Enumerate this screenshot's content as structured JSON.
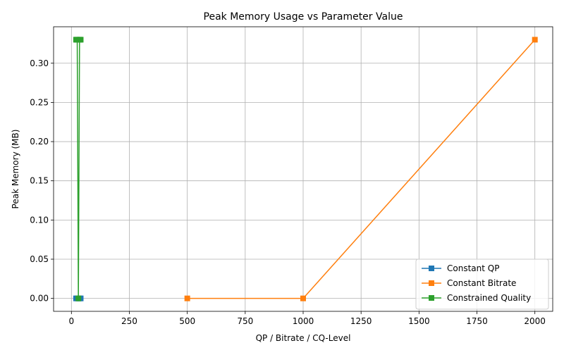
{
  "chart_data": {
    "type": "line",
    "title": "Peak Memory Usage vs Parameter Value",
    "xlabel": "QP / Bitrate / CQ-Level",
    "ylabel": "Peak Memory (MB)",
    "xlim": [
      -77,
      2077
    ],
    "ylim": [
      -0.0165,
      0.3465
    ],
    "xticks": [
      0,
      250,
      500,
      750,
      1000,
      1250,
      1500,
      1750,
      2000
    ],
    "xtick_labels": [
      "0",
      "250",
      "500",
      "750",
      "1000",
      "1250",
      "1500",
      "1750",
      "2000"
    ],
    "yticks": [
      0.0,
      0.05,
      0.1,
      0.15,
      0.2,
      0.25,
      0.3
    ],
    "ytick_labels": [
      "0.00",
      "0.05",
      "0.10",
      "0.15",
      "0.20",
      "0.25",
      "0.30"
    ],
    "grid": true,
    "legend_position": "bottom-right",
    "series": [
      {
        "name": "Constant QP",
        "color": "#1f77b4",
        "marker": "square",
        "x": [
          20,
          25,
          30,
          35,
          40
        ],
        "y": [
          0.0,
          0.0,
          0.0,
          0.0,
          0.0
        ]
      },
      {
        "name": "Constant Bitrate",
        "color": "#ff7f0e",
        "marker": "square",
        "x": [
          500,
          1000,
          2000
        ],
        "y": [
          0.0,
          0.0,
          0.33
        ]
      },
      {
        "name": "Constrained Quality",
        "color": "#2ca02c",
        "marker": "square",
        "x": [
          20,
          25,
          30,
          35,
          40
        ],
        "y": [
          0.33,
          0.33,
          0.0,
          0.33,
          0.33
        ]
      }
    ]
  }
}
